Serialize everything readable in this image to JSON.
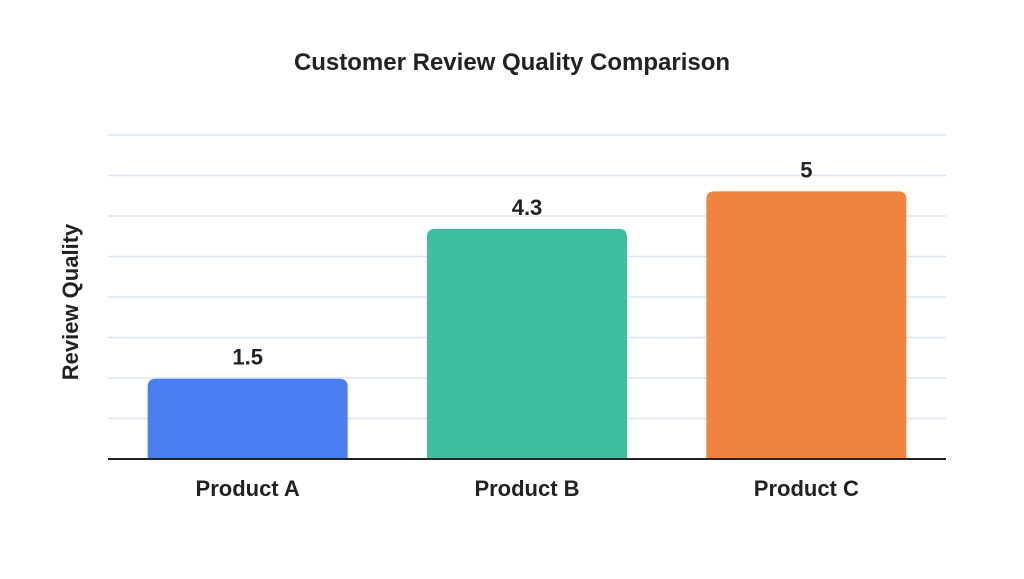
{
  "chart_data": {
    "type": "bar",
    "title": "Customer Review Quality Comparison",
    "xlabel": "",
    "ylabel": "Review Quality",
    "categories": [
      "Product A",
      "Product B",
      "Product C"
    ],
    "values": [
      1.5,
      4.3,
      5
    ],
    "data_labels": [
      "1.5",
      "4.3",
      "5"
    ],
    "colors": [
      "#4a7ff2",
      "#3fbfa0",
      "#f0843e"
    ],
    "ylim": [
      0,
      6.8
    ],
    "grid": true,
    "gridline_color": "#dbe6f5",
    "legend": "none"
  }
}
